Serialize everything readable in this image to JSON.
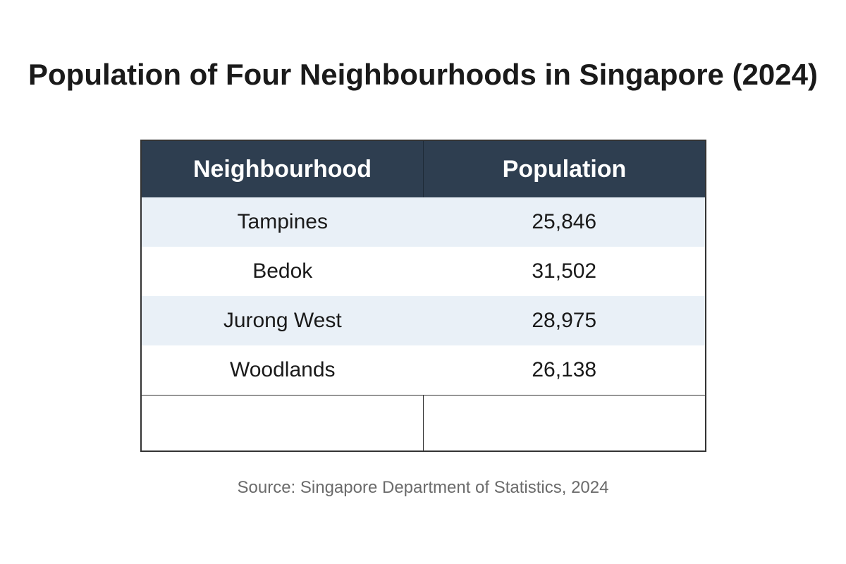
{
  "chart_data": {
    "type": "table",
    "title": "Population of Four Neighbourhoods in Singapore (2024)",
    "columns": [
      "Neighbourhood",
      "Population"
    ],
    "rows": [
      [
        "Tampines",
        "25,846"
      ],
      [
        "Bedok",
        "31,502"
      ],
      [
        "Jurong West",
        "28,975"
      ],
      [
        "Woodlands",
        "26,138"
      ]
    ],
    "values": [
      25846,
      31502,
      28975,
      26138
    ],
    "empty_rows": 1,
    "source": "Source: Singapore Department of Statistics, 2024"
  },
  "colors": {
    "header_bg": "#2e3e50",
    "header_text": "#ffffff",
    "stripe_bg": "#e9f0f7",
    "border": "#333333"
  }
}
